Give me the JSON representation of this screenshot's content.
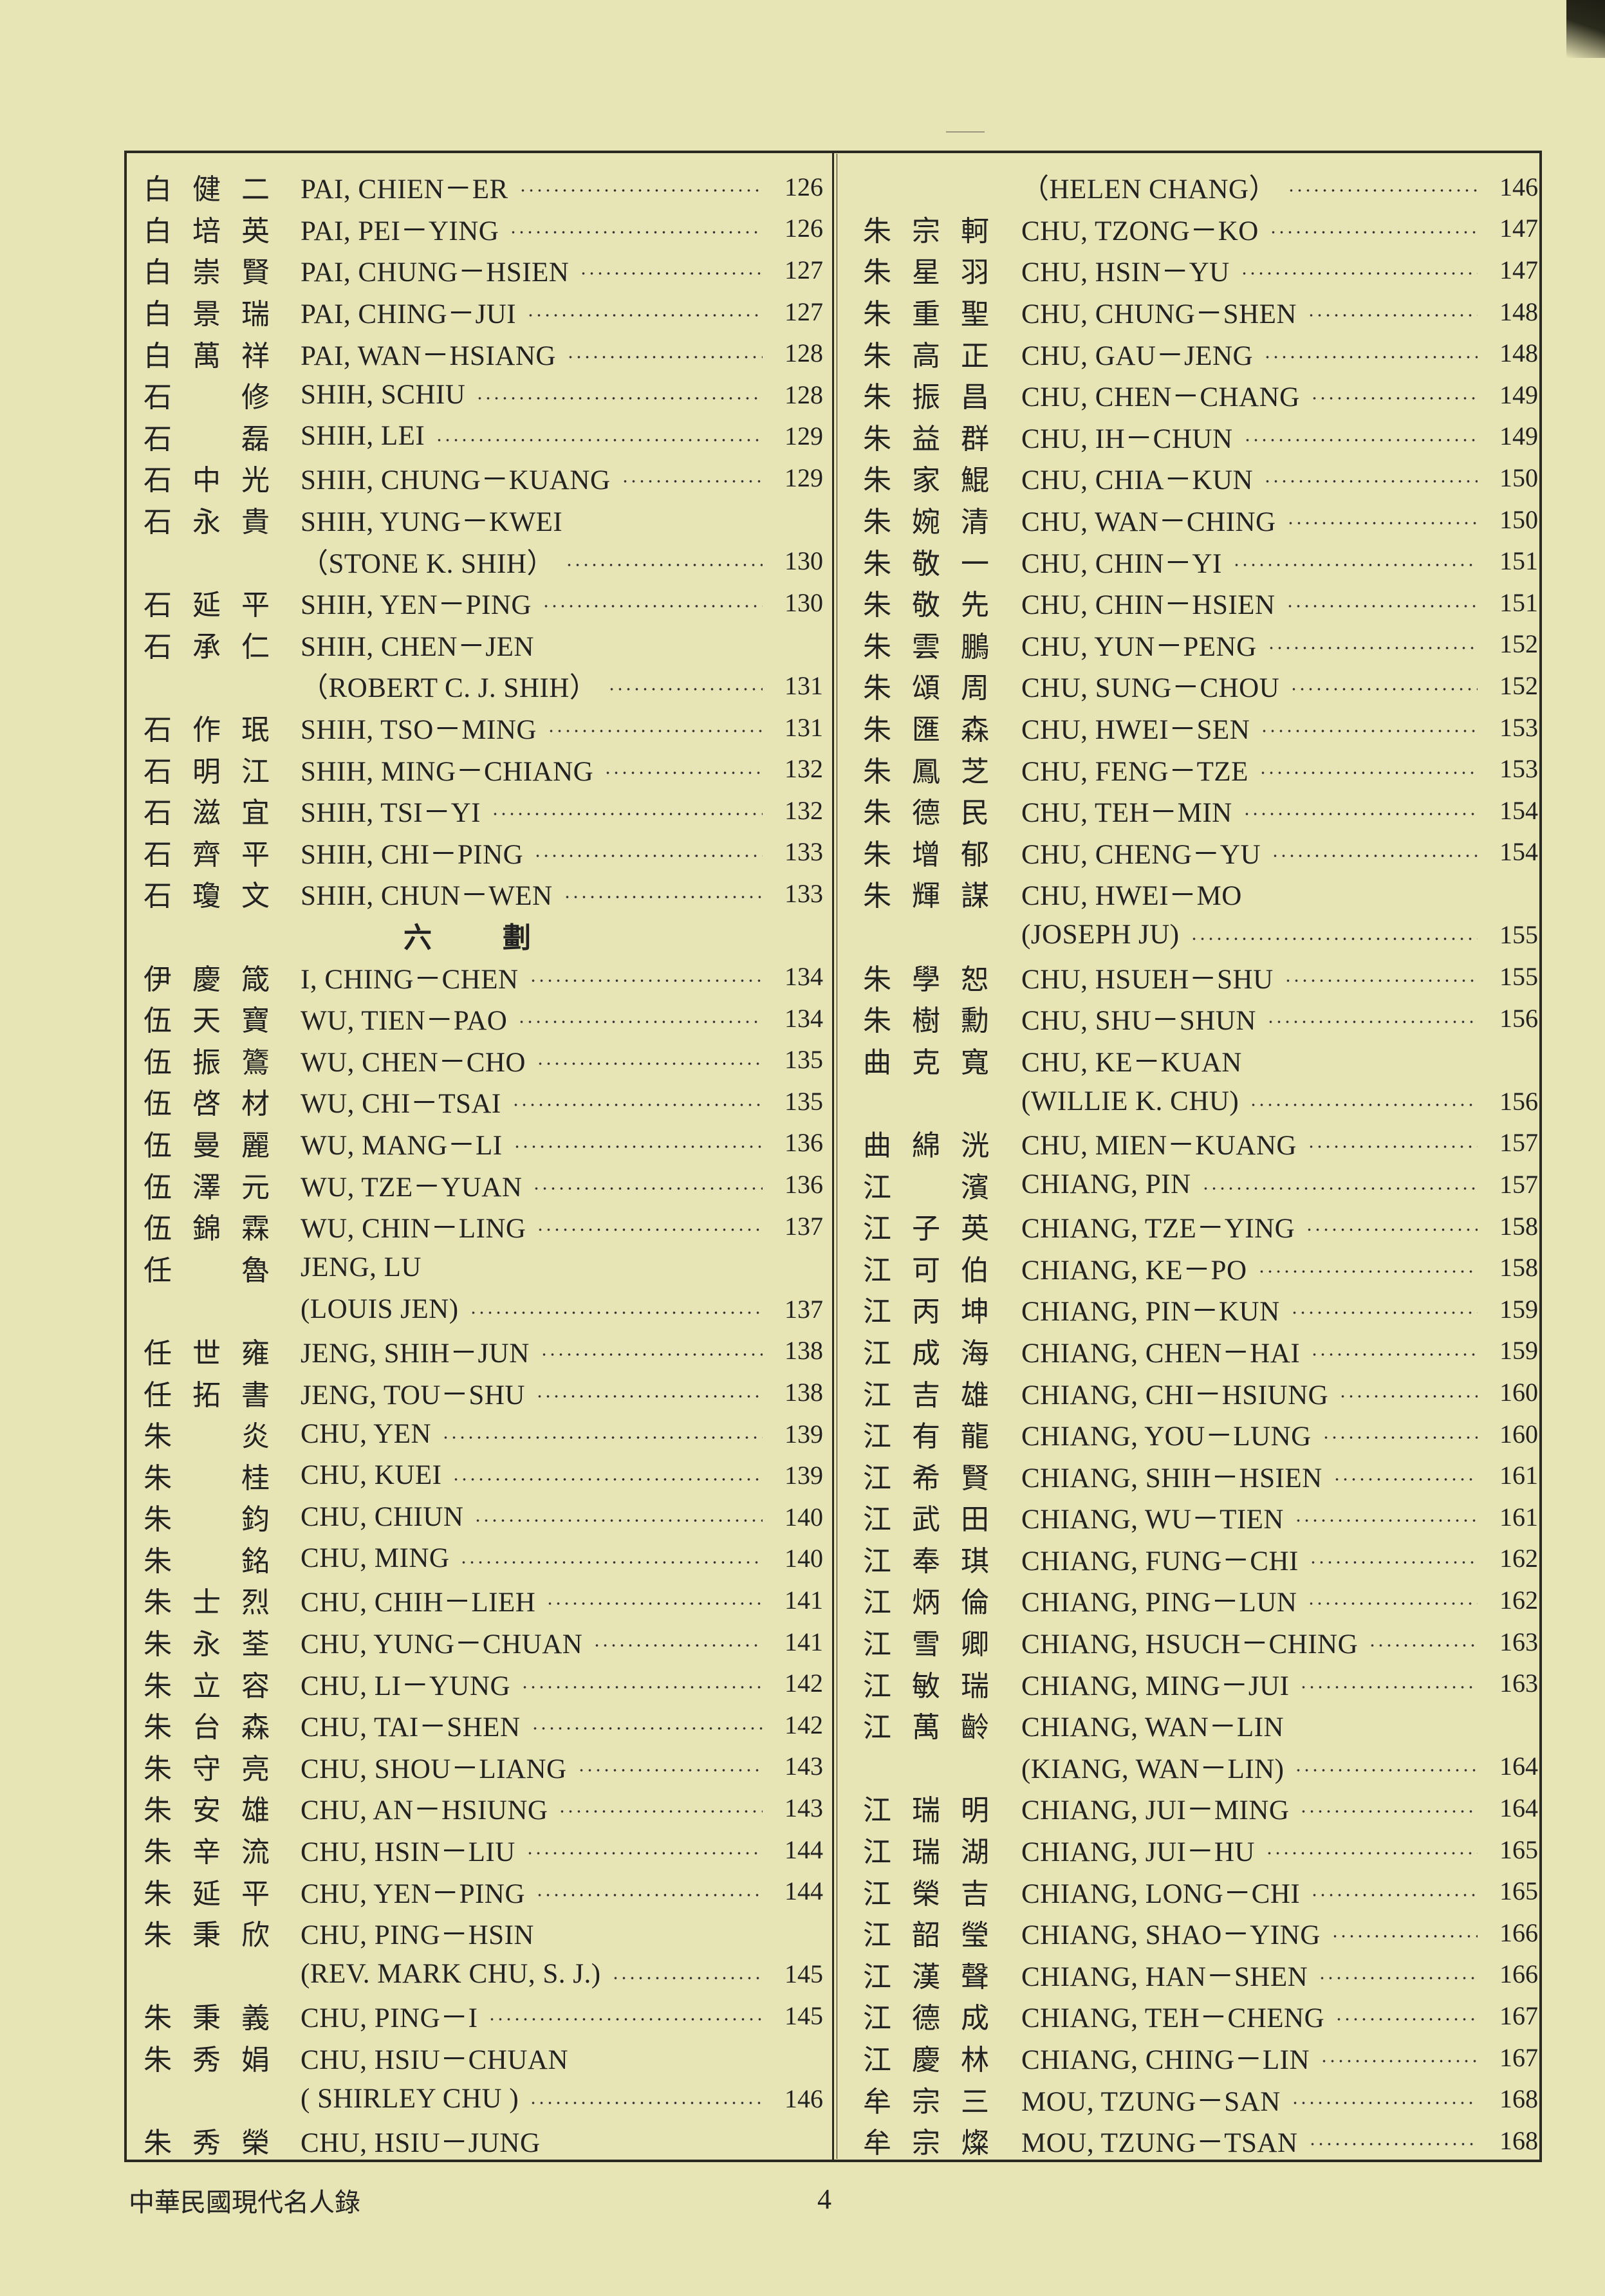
{
  "colors": {
    "paper": "#e7e4b5",
    "ink": "#222222"
  },
  "left_column": [
    {
      "cn": [
        "白",
        "健",
        "二"
      ],
      "en": "PAI, CHIEN－ER",
      "page": "126"
    },
    {
      "cn": [
        "白",
        "培",
        "英"
      ],
      "en": "PAI, PEI－YING",
      "page": "126"
    },
    {
      "cn": [
        "白",
        "崇",
        "賢"
      ],
      "en": "PAI, CHUNG－HSIEN",
      "page": "127"
    },
    {
      "cn": [
        "白",
        "景",
        "瑞"
      ],
      "en": "PAI, CHING－JUI",
      "page": "127"
    },
    {
      "cn": [
        "白",
        "萬",
        "祥"
      ],
      "en": "PAI, WAN－HSIANG",
      "page": "128"
    },
    {
      "cn": [
        "石",
        "",
        "修"
      ],
      "en": "SHIH, SCHIU",
      "page": "128"
    },
    {
      "cn": [
        "石",
        "",
        "磊"
      ],
      "en": "SHIH, LEI",
      "page": "129"
    },
    {
      "cn": [
        "石",
        "中",
        "光"
      ],
      "en": "SHIH, CHUNG－KUANG",
      "page": "129"
    },
    {
      "cn": [
        "石",
        "永",
        "貴"
      ],
      "en": "SHIH, YUNG－KWEI",
      "page": ""
    },
    {
      "cn": [
        "",
        "",
        ""
      ],
      "en": "（STONE K. SHIH）",
      "page": "130"
    },
    {
      "cn": [
        "石",
        "延",
        "平"
      ],
      "en": "SHIH, YEN－PING",
      "page": "130"
    },
    {
      "cn": [
        "石",
        "承",
        "仁"
      ],
      "en": "SHIH, CHEN－JEN",
      "page": ""
    },
    {
      "cn": [
        "",
        "",
        ""
      ],
      "en": "（ROBERT C. J. SHIH）",
      "page": "131"
    },
    {
      "cn": [
        "石",
        "作",
        "珉"
      ],
      "en": "SHIH, TSO－MING",
      "page": "131"
    },
    {
      "cn": [
        "石",
        "明",
        "江"
      ],
      "en": "SHIH, MING－CHIANG",
      "page": "132"
    },
    {
      "cn": [
        "石",
        "滋",
        "宜"
      ],
      "en": "SHIH, TSI－YI",
      "page": "132"
    },
    {
      "cn": [
        "石",
        "齊",
        "平"
      ],
      "en": "SHIH, CHI－PING",
      "page": "133"
    },
    {
      "cn": [
        "石",
        "瓊",
        "文"
      ],
      "en": "SHIH, CHUN－WEN",
      "page": "133"
    },
    {
      "heading": [
        "六",
        "劃"
      ]
    },
    {
      "cn": [
        "伊",
        "慶",
        "箴"
      ],
      "en": "I, CHING－CHEN",
      "page": "134"
    },
    {
      "cn": [
        "伍",
        "天",
        "寶"
      ],
      "en": "WU, TIEN－PAO",
      "page": "134"
    },
    {
      "cn": [
        "伍",
        "振",
        "鷟"
      ],
      "en": "WU, CHEN－CHO",
      "page": "135"
    },
    {
      "cn": [
        "伍",
        "啓",
        "材"
      ],
      "en": "WU, CHI－TSAI",
      "page": "135"
    },
    {
      "cn": [
        "伍",
        "曼",
        "麗"
      ],
      "en": "WU, MANG－LI",
      "page": "136"
    },
    {
      "cn": [
        "伍",
        "澤",
        "元"
      ],
      "en": "WU, TZE－YUAN",
      "page": "136"
    },
    {
      "cn": [
        "伍",
        "錦",
        "霖"
      ],
      "en": "WU, CHIN－LING",
      "page": "137"
    },
    {
      "cn": [
        "任",
        "",
        "魯"
      ],
      "en": "JENG, LU",
      "page": ""
    },
    {
      "cn": [
        "",
        "",
        ""
      ],
      "en": "(LOUIS JEN)",
      "page": "137"
    },
    {
      "cn": [
        "任",
        "世",
        "雍"
      ],
      "en": "JENG, SHIH－JUN",
      "page": "138"
    },
    {
      "cn": [
        "任",
        "拓",
        "書"
      ],
      "en": "JENG, TOU－SHU",
      "page": "138"
    },
    {
      "cn": [
        "朱",
        "",
        "炎"
      ],
      "en": "CHU, YEN",
      "page": "139"
    },
    {
      "cn": [
        "朱",
        "",
        "桂"
      ],
      "en": "CHU, KUEI",
      "page": "139"
    },
    {
      "cn": [
        "朱",
        "",
        "鈞"
      ],
      "en": "CHU, CHIUN",
      "page": "140"
    },
    {
      "cn": [
        "朱",
        "",
        "銘"
      ],
      "en": "CHU, MING",
      "page": "140"
    },
    {
      "cn": [
        "朱",
        "士",
        "烈"
      ],
      "en": "CHU, CHIH－LIEH",
      "page": "141"
    },
    {
      "cn": [
        "朱",
        "永",
        "荃"
      ],
      "en": "CHU, YUNG－CHUAN",
      "page": "141"
    },
    {
      "cn": [
        "朱",
        "立",
        "容"
      ],
      "en": "CHU, LI－YUNG",
      "page": "142"
    },
    {
      "cn": [
        "朱",
        "台",
        "森"
      ],
      "en": "CHU, TAI－SHEN",
      "page": "142"
    },
    {
      "cn": [
        "朱",
        "守",
        "亮"
      ],
      "en": "CHU, SHOU－LIANG",
      "page": "143"
    },
    {
      "cn": [
        "朱",
        "安",
        "雄"
      ],
      "en": "CHU, AN－HSIUNG",
      "page": "143"
    },
    {
      "cn": [
        "朱",
        "辛",
        "流"
      ],
      "en": "CHU, HSIN－LIU",
      "page": "144"
    },
    {
      "cn": [
        "朱",
        "延",
        "平"
      ],
      "en": "CHU, YEN－PING",
      "page": "144"
    },
    {
      "cn": [
        "朱",
        "秉",
        "欣"
      ],
      "en": "CHU, PING－HSIN",
      "page": ""
    },
    {
      "cn": [
        "",
        "",
        ""
      ],
      "en": "(REV. MARK CHU, S. J.)",
      "page": "145"
    },
    {
      "cn": [
        "朱",
        "秉",
        "義"
      ],
      "en": "CHU, PING－I",
      "page": "145"
    },
    {
      "cn": [
        "朱",
        "秀",
        "娟"
      ],
      "en": "CHU, HSIU－CHUAN",
      "page": ""
    },
    {
      "cn": [
        "",
        "",
        ""
      ],
      "en": "( SHIRLEY CHU )",
      "page": "146"
    },
    {
      "cn": [
        "朱",
        "秀",
        "榮"
      ],
      "en": "CHU, HSIU－JUNG",
      "page": ""
    }
  ],
  "right_column": [
    {
      "cn": [
        "",
        "",
        ""
      ],
      "en": "（HELEN CHANG）",
      "page": "146"
    },
    {
      "cn": [
        "朱",
        "宗",
        "軻"
      ],
      "en": "CHU, TZONG－KO",
      "page": "147"
    },
    {
      "cn": [
        "朱",
        "星",
        "羽"
      ],
      "en": "CHU, HSIN－YU",
      "page": "147"
    },
    {
      "cn": [
        "朱",
        "重",
        "聖"
      ],
      "en": "CHU, CHUNG－SHEN",
      "page": "148"
    },
    {
      "cn": [
        "朱",
        "高",
        "正"
      ],
      "en": "CHU, GAU－JENG",
      "page": "148"
    },
    {
      "cn": [
        "朱",
        "振",
        "昌"
      ],
      "en": "CHU, CHEN－CHANG",
      "page": "149"
    },
    {
      "cn": [
        "朱",
        "益",
        "群"
      ],
      "en": "CHU, IH－CHUN",
      "page": "149"
    },
    {
      "cn": [
        "朱",
        "家",
        "鯤"
      ],
      "en": "CHU, CHIA－KUN",
      "page": "150"
    },
    {
      "cn": [
        "朱",
        "婉",
        "清"
      ],
      "en": "CHU, WAN－CHING",
      "page": "150"
    },
    {
      "cn": [
        "朱",
        "敬",
        "一"
      ],
      "en": "CHU, CHIN－YI",
      "page": "151"
    },
    {
      "cn": [
        "朱",
        "敬",
        "先"
      ],
      "en": "CHU, CHIN－HSIEN",
      "page": "151"
    },
    {
      "cn": [
        "朱",
        "雲",
        "鵬"
      ],
      "en": "CHU, YUN－PENG",
      "page": "152"
    },
    {
      "cn": [
        "朱",
        "頌",
        "周"
      ],
      "en": "CHU, SUNG－CHOU",
      "page": "152"
    },
    {
      "cn": [
        "朱",
        "匯",
        "森"
      ],
      "en": "CHU, HWEI－SEN",
      "page": "153"
    },
    {
      "cn": [
        "朱",
        "鳳",
        "芝"
      ],
      "en": "CHU, FENG－TZE",
      "page": "153"
    },
    {
      "cn": [
        "朱",
        "德",
        "民"
      ],
      "en": "CHU, TEH－MIN",
      "page": "154"
    },
    {
      "cn": [
        "朱",
        "增",
        "郁"
      ],
      "en": "CHU, CHENG－YU",
      "page": "154"
    },
    {
      "cn": [
        "朱",
        "輝",
        "謀"
      ],
      "en": "CHU, HWEI－MO",
      "page": ""
    },
    {
      "cn": [
        "",
        "",
        ""
      ],
      "en": "(JOSEPH JU)",
      "page": "155"
    },
    {
      "cn": [
        "朱",
        "學",
        "恕"
      ],
      "en": "CHU, HSUEH－SHU",
      "page": "155"
    },
    {
      "cn": [
        "朱",
        "樹",
        "勳"
      ],
      "en": "CHU, SHU－SHUN",
      "page": "156"
    },
    {
      "cn": [
        "曲",
        "克",
        "寬"
      ],
      "en": "CHU, KE－KUAN",
      "page": ""
    },
    {
      "cn": [
        "",
        "",
        ""
      ],
      "en": "(WILLIE K. CHU)",
      "page": "156"
    },
    {
      "cn": [
        "曲",
        "綿",
        "洸"
      ],
      "en": "CHU, MIEN－KUANG",
      "page": "157"
    },
    {
      "cn": [
        "江",
        "",
        "濱"
      ],
      "en": "CHIANG, PIN",
      "page": "157"
    },
    {
      "cn": [
        "江",
        "子",
        "英"
      ],
      "en": "CHIANG, TZE－YING",
      "page": "158"
    },
    {
      "cn": [
        "江",
        "可",
        "伯"
      ],
      "en": "CHIANG, KE－PO",
      "page": "158"
    },
    {
      "cn": [
        "江",
        "丙",
        "坤"
      ],
      "en": "CHIANG, PIN－KUN",
      "page": "159"
    },
    {
      "cn": [
        "江",
        "成",
        "海"
      ],
      "en": "CHIANG, CHEN－HAI",
      "page": "159"
    },
    {
      "cn": [
        "江",
        "吉",
        "雄"
      ],
      "en": "CHIANG, CHI－HSIUNG",
      "page": "160"
    },
    {
      "cn": [
        "江",
        "有",
        "龍"
      ],
      "en": "CHIANG, YOU－LUNG",
      "page": "160"
    },
    {
      "cn": [
        "江",
        "希",
        "賢"
      ],
      "en": "CHIANG, SHIH－HSIEN",
      "page": "161"
    },
    {
      "cn": [
        "江",
        "武",
        "田"
      ],
      "en": "CHIANG, WU－TIEN",
      "page": "161"
    },
    {
      "cn": [
        "江",
        "奉",
        "琪"
      ],
      "en": "CHIANG, FUNG－CHI",
      "page": "162"
    },
    {
      "cn": [
        "江",
        "炳",
        "倫"
      ],
      "en": "CHIANG, PING－LUN",
      "page": "162"
    },
    {
      "cn": [
        "江",
        "雪",
        "卿"
      ],
      "en": "CHIANG, HSUCH－CHING",
      "page": "163"
    },
    {
      "cn": [
        "江",
        "敏",
        "瑞"
      ],
      "en": "CHIANG, MING－JUI",
      "page": "163"
    },
    {
      "cn": [
        "江",
        "萬",
        "齡"
      ],
      "en": "CHIANG, WAN－LIN",
      "page": ""
    },
    {
      "cn": [
        "",
        "",
        ""
      ],
      "en": "(KIANG, WAN－LIN)",
      "page": "164"
    },
    {
      "cn": [
        "江",
        "瑞",
        "明"
      ],
      "en": "CHIANG, JUI－MING",
      "page": "164"
    },
    {
      "cn": [
        "江",
        "瑞",
        "湖"
      ],
      "en": "CHIANG, JUI－HU",
      "page": "165"
    },
    {
      "cn": [
        "江",
        "榮",
        "吉"
      ],
      "en": "CHIANG, LONG－CHI",
      "page": "165"
    },
    {
      "cn": [
        "江",
        "韶",
        "瑩"
      ],
      "en": "CHIANG, SHAO－YING",
      "page": "166"
    },
    {
      "cn": [
        "江",
        "漢",
        "聲"
      ],
      "en": "CHIANG, HAN－SHEN",
      "page": "166"
    },
    {
      "cn": [
        "江",
        "德",
        "成"
      ],
      "en": "CHIANG, TEH－CHENG",
      "page": "167"
    },
    {
      "cn": [
        "江",
        "慶",
        "林"
      ],
      "en": "CHIANG, CHING－LIN",
      "page": "167"
    },
    {
      "cn": [
        "牟",
        "宗",
        "三"
      ],
      "en": "MOU, TZUNG－SAN",
      "page": "168"
    },
    {
      "cn": [
        "牟",
        "宗",
        "燦"
      ],
      "en": "MOU, TZUNG－TSAN",
      "page": "168"
    }
  ],
  "footer": {
    "book_title": "中華民國現代名人錄",
    "page_number": "4"
  }
}
